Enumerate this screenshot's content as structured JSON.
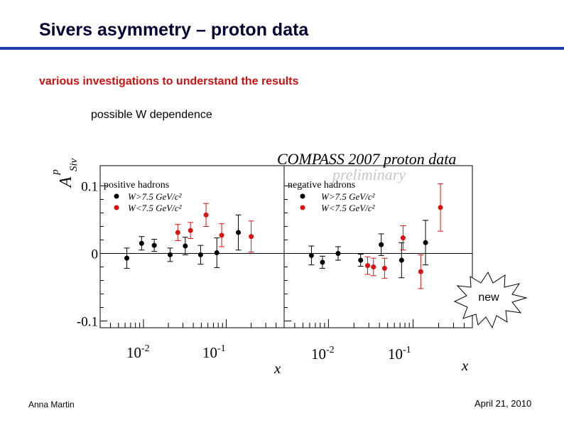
{
  "slide": {
    "title": "Sivers asymmetry – proton data",
    "subtitle": "various investigations to understand the results",
    "note": "possible W dependence",
    "author": "Anna Martin",
    "date": "April 21, 2010",
    "burst_label": "new"
  },
  "chart_data": {
    "type": "scatter",
    "title": "COMPASS 2007 proton data",
    "watermark": "preliminary",
    "ylabel_base": "A",
    "ylabel_sup": "p",
    "ylabel_sub": "Siv",
    "xlabel": "x",
    "xscale": "log",
    "xlim": [
      0.003,
      0.5
    ],
    "ylim": [
      -0.11,
      0.13
    ],
    "yticks": [
      {
        "value": 0.1,
        "label": "0.1"
      },
      {
        "value": 0,
        "label": "0"
      },
      {
        "value": -0.1,
        "label": "-0.1"
      }
    ],
    "xtick_bases": [
      "10",
      "10"
    ],
    "xtick_exps": [
      "-2",
      "-1"
    ],
    "xtick_values": [
      0.01,
      0.1
    ],
    "colors": {
      "high_W": "#000000",
      "low_W": "#dd1111"
    },
    "panels": [
      {
        "legend_title": "positive hadrons",
        "legend": [
          "W>7.5 GeV/c²",
          "W<7.5 GeV/c²"
        ],
        "series": [
          {
            "name": "W>7.5 GeV/c²",
            "color": "#000000",
            "points": [
              {
                "x": 0.0063,
                "y": -0.007,
                "err": 0.015
              },
              {
                "x": 0.0095,
                "y": 0.015,
                "err": 0.01
              },
              {
                "x": 0.0135,
                "y": 0.012,
                "err": 0.009
              },
              {
                "x": 0.021,
                "y": -0.002,
                "err": 0.01
              },
              {
                "x": 0.032,
                "y": 0.011,
                "err": 0.013
              },
              {
                "x": 0.049,
                "y": -0.002,
                "err": 0.014
              },
              {
                "x": 0.077,
                "y": 0.001,
                "err": 0.022
              },
              {
                "x": 0.14,
                "y": 0.031,
                "err": 0.026
              }
            ]
          },
          {
            "name": "W<7.5 GeV/c²",
            "color": "#dd1111",
            "points": [
              {
                "x": 0.026,
                "y": 0.031,
                "err": 0.012
              },
              {
                "x": 0.037,
                "y": 0.034,
                "err": 0.012
              },
              {
                "x": 0.057,
                "y": 0.057,
                "err": 0.017
              },
              {
                "x": 0.088,
                "y": 0.027,
                "err": 0.017
              },
              {
                "x": 0.2,
                "y": 0.025,
                "err": 0.023
              }
            ]
          }
        ]
      },
      {
        "legend_title": "negative hadrons",
        "legend": [
          "W>7.5 GeV/c²",
          "W<7.5 GeV/c²"
        ],
        "series": [
          {
            "name": "W>7.5 GeV/c²",
            "color": "#000000",
            "points": [
              {
                "x": 0.0063,
                "y": -0.003,
                "err": 0.014
              },
              {
                "x": 0.0085,
                "y": -0.013,
                "err": 0.009
              },
              {
                "x": 0.013,
                "y": 0.0,
                "err": 0.01
              },
              {
                "x": 0.024,
                "y": -0.01,
                "err": 0.009
              },
              {
                "x": 0.042,
                "y": 0.013,
                "err": 0.016
              },
              {
                "x": 0.073,
                "y": -0.01,
                "err": 0.026
              },
              {
                "x": 0.14,
                "y": 0.016,
                "err": 0.033
              }
            ]
          },
          {
            "name": "W<7.5 GeV/c²",
            "color": "#dd1111",
            "points": [
              {
                "x": 0.029,
                "y": -0.018,
                "err": 0.013
              },
              {
                "x": 0.034,
                "y": -0.02,
                "err": 0.013
              },
              {
                "x": 0.046,
                "y": -0.022,
                "err": 0.015
              },
              {
                "x": 0.076,
                "y": 0.023,
                "err": 0.018
              },
              {
                "x": 0.123,
                "y": -0.027,
                "err": 0.025
              },
              {
                "x": 0.21,
                "y": 0.068,
                "err": 0.035
              }
            ]
          }
        ]
      }
    ]
  }
}
